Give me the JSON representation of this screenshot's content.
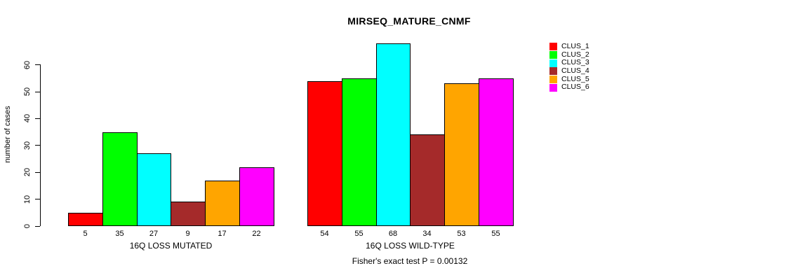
{
  "title": "MIRSEQ_MATURE_CNMF",
  "y_axis": {
    "label": "number of cases",
    "ticks": [
      0,
      10,
      20,
      30,
      40,
      50,
      60
    ]
  },
  "footnote": "Fisher's exact test P = 0.00132",
  "legend": {
    "items": [
      {
        "label": "CLUS_1",
        "color": "#FF0000"
      },
      {
        "label": "CLUS_2",
        "color": "#00FF00"
      },
      {
        "label": "CLUS_3",
        "color": "#00FFFF"
      },
      {
        "label": "CLUS_4",
        "color": "#A52A2A"
      },
      {
        "label": "CLUS_5",
        "color": "#FFA500"
      },
      {
        "label": "CLUS_6",
        "color": "#FF00FF"
      }
    ]
  },
  "chart_data": {
    "type": "bar",
    "title": "MIRSEQ_MATURE_CNMF",
    "xlabel": "",
    "ylabel": "number of cases",
    "ylim": [
      0,
      68
    ],
    "yticks": [
      0,
      10,
      20,
      30,
      40,
      50,
      60
    ],
    "grid": false,
    "legend_position": "right",
    "bar_value_labels": true,
    "series_names": [
      "CLUS_1",
      "CLUS_2",
      "CLUS_3",
      "CLUS_4",
      "CLUS_5",
      "CLUS_6"
    ],
    "series_colors": [
      "#FF0000",
      "#00FF00",
      "#00FFFF",
      "#A52A2A",
      "#FFA500",
      "#FF00FF"
    ],
    "groups": [
      {
        "label": "16Q LOSS MUTATED",
        "values": [
          5,
          35,
          27,
          9,
          17,
          22
        ]
      },
      {
        "label": "16Q LOSS WILD-TYPE",
        "values": [
          54,
          55,
          68,
          34,
          53,
          55
        ]
      }
    ],
    "annotation": "Fisher's exact test P = 0.00132"
  }
}
